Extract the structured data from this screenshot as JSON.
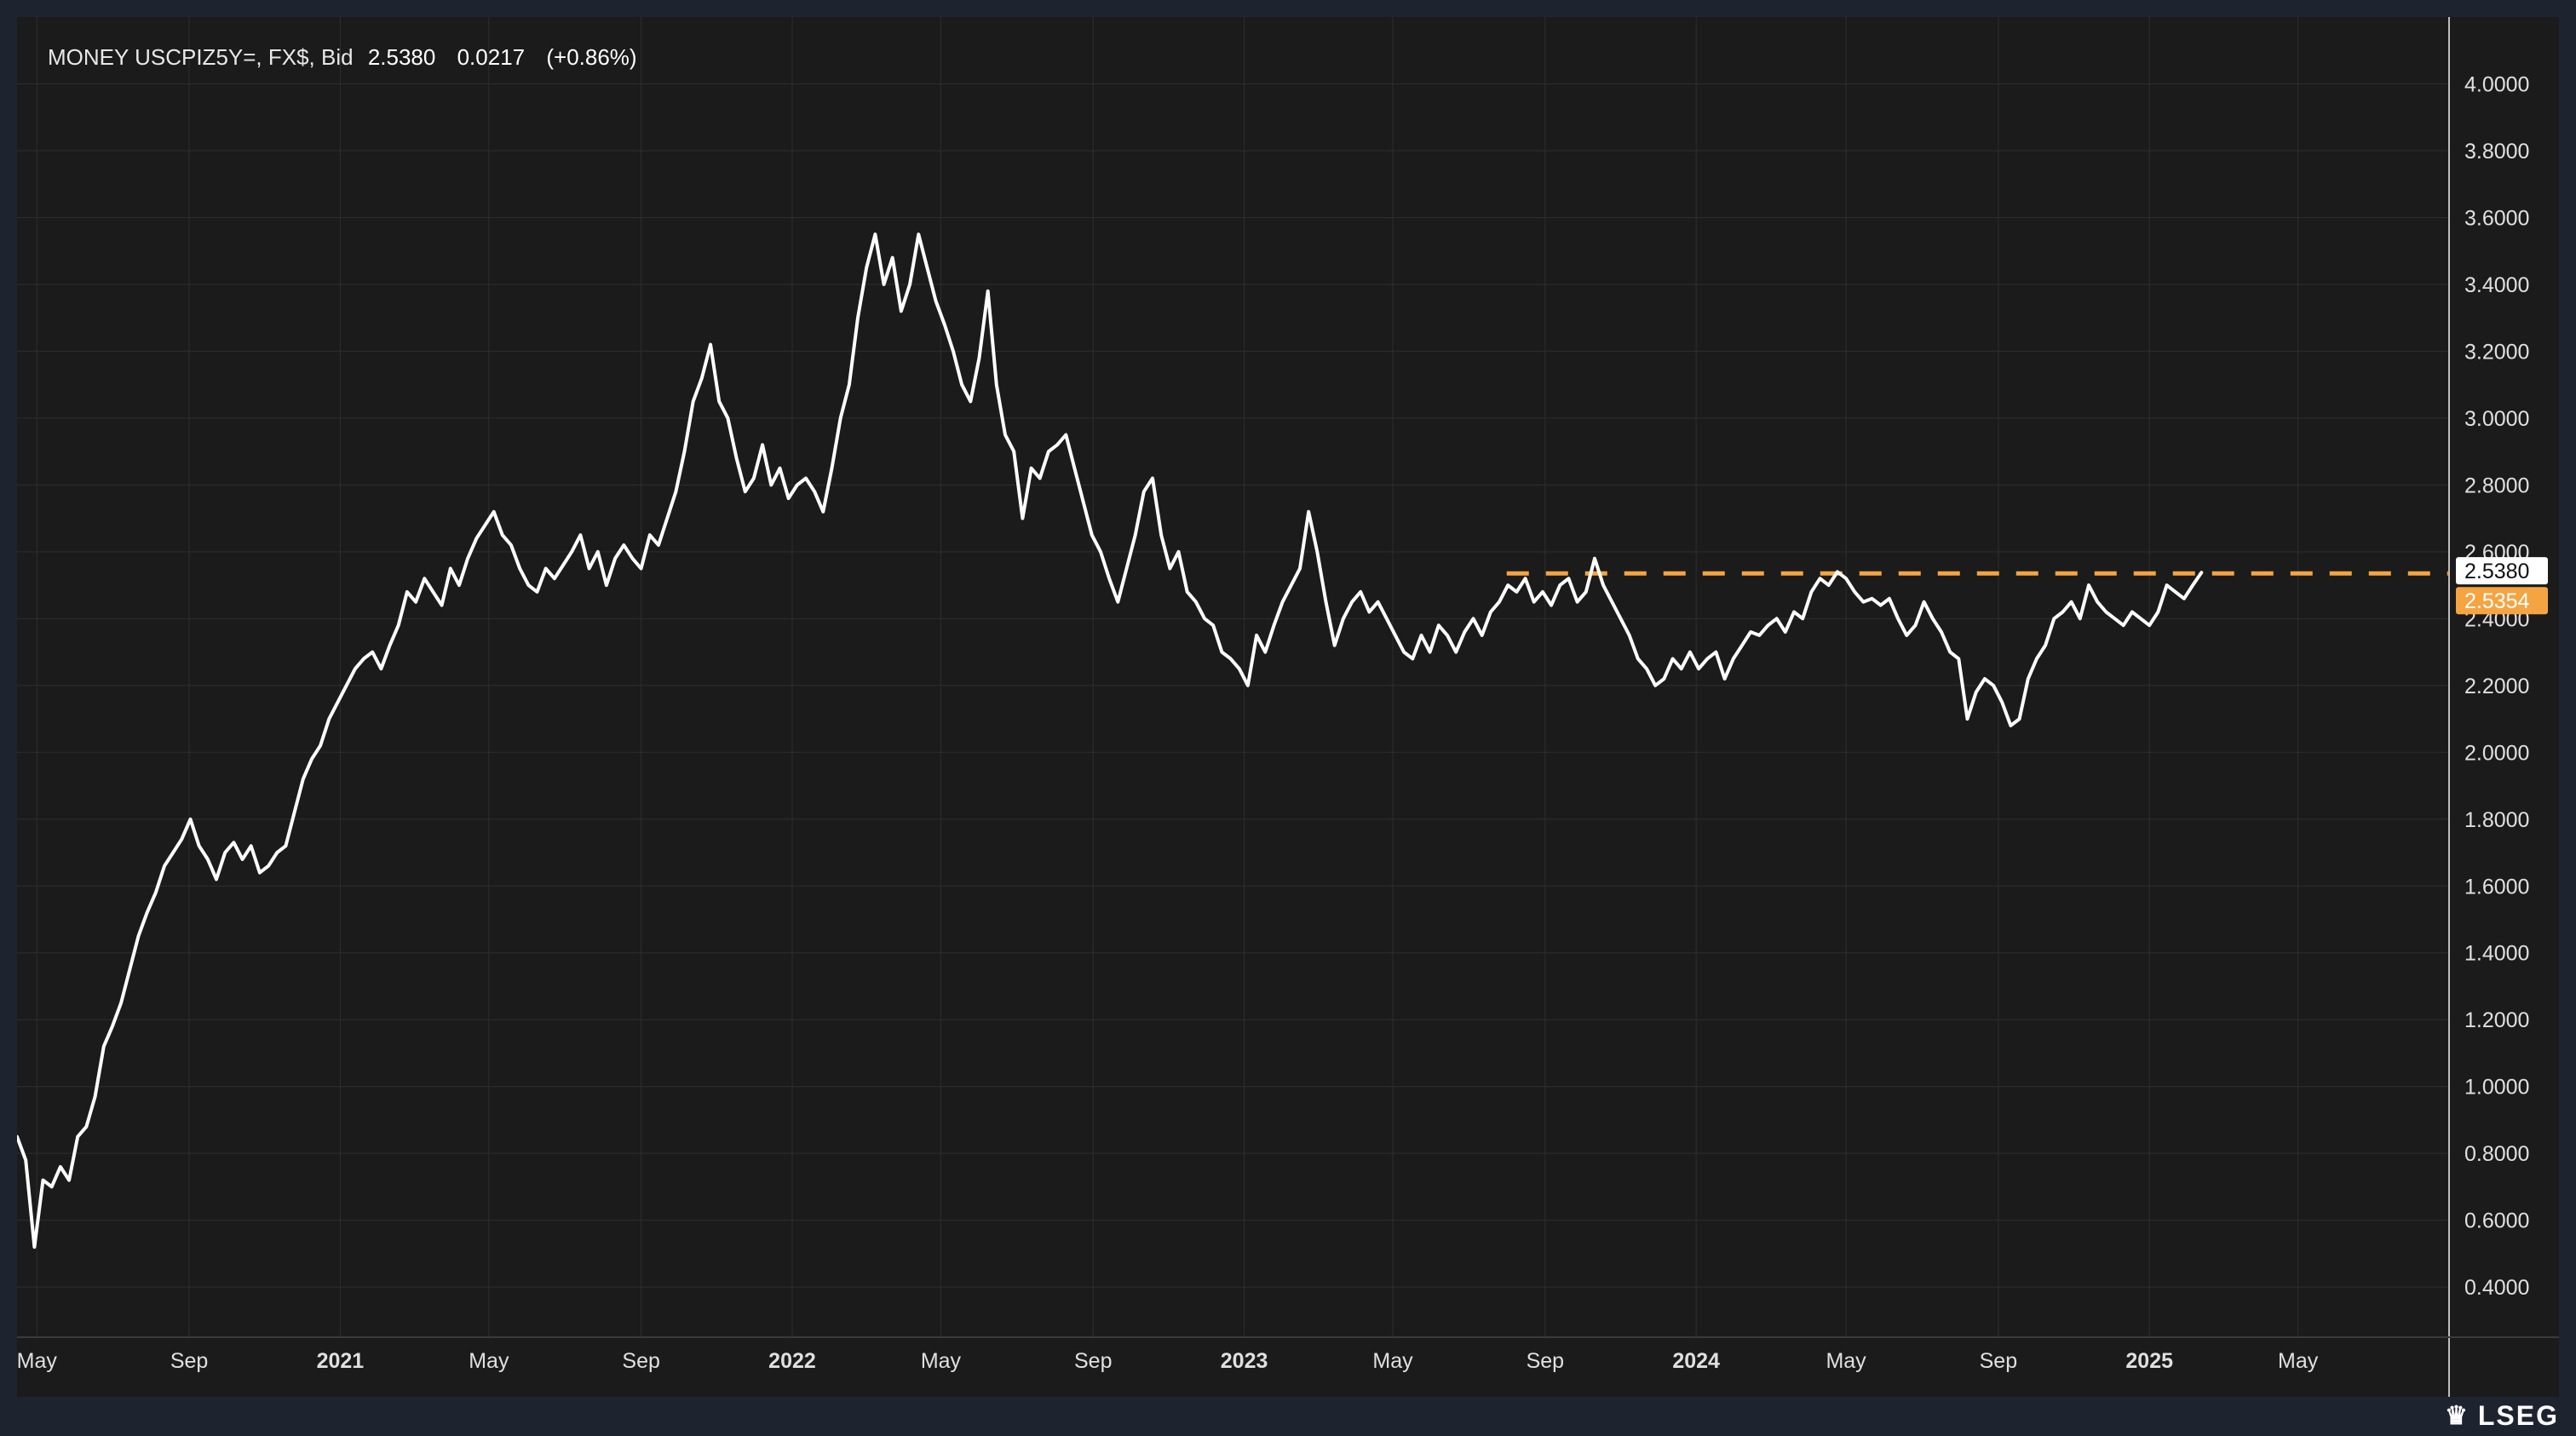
{
  "header": {
    "instrument": "MONEY USCPIZ5Y=, FX$, Bid",
    "last": "2.5380",
    "change": "0.0217",
    "change_pct": "(+0.86%)"
  },
  "logo": {
    "text": "LSEG",
    "icon": "lion-crest-icon"
  },
  "colors": {
    "background": "#1b1b1b",
    "outer": "#1e2330",
    "line": "#ffffff",
    "grid": "#2e2e2e",
    "reference": "#f5a442",
    "last_label_bg": "#ffffff",
    "ref_label_bg": "#f5a442"
  },
  "chart_data": {
    "type": "line",
    "title": "",
    "xlabel": "",
    "ylabel": "",
    "y_ticks": [
      "0.4000",
      "0.6000",
      "0.8000",
      "1.0000",
      "1.2000",
      "1.4000",
      "1.6000",
      "1.8000",
      "2.0000",
      "2.2000",
      "2.4000",
      "2.6000",
      "2.8000",
      "3.0000",
      "3.2000",
      "3.4000",
      "3.6000",
      "3.8000",
      "4.0000"
    ],
    "ylim": [
      0.25,
      4.2
    ],
    "xlim": [
      "2020-04-15",
      "2025-08-31"
    ],
    "grid": true,
    "x_ticks": [
      {
        "date": "2020-05-01",
        "label": "May",
        "bold": false
      },
      {
        "date": "2020-09-01",
        "label": "Sep",
        "bold": false
      },
      {
        "date": "2021-01-01",
        "label": "2021",
        "bold": true
      },
      {
        "date": "2021-05-01",
        "label": "May",
        "bold": false
      },
      {
        "date": "2021-09-01",
        "label": "Sep",
        "bold": false
      },
      {
        "date": "2022-01-01",
        "label": "2022",
        "bold": true
      },
      {
        "date": "2022-05-01",
        "label": "May",
        "bold": false
      },
      {
        "date": "2022-09-01",
        "label": "Sep",
        "bold": false
      },
      {
        "date": "2023-01-01",
        "label": "2023",
        "bold": true
      },
      {
        "date": "2023-05-01",
        "label": "May",
        "bold": false
      },
      {
        "date": "2023-09-01",
        "label": "Sep",
        "bold": false
      },
      {
        "date": "2024-01-01",
        "label": "2024",
        "bold": true
      },
      {
        "date": "2024-05-01",
        "label": "May",
        "bold": false
      },
      {
        "date": "2024-09-01",
        "label": "Sep",
        "bold": false
      },
      {
        "date": "2025-01-01",
        "label": "2025",
        "bold": true
      },
      {
        "date": "2025-05-01",
        "label": "May",
        "bold": false
      }
    ],
    "reference_line": {
      "value": 2.5354,
      "label": "2.5354",
      "x_start": "2023-08-01",
      "style": "dashed"
    },
    "last_value": {
      "value": 2.538,
      "label": "2.5380"
    },
    "series": [
      {
        "values": [
          [
            "2020-04-15",
            0.85
          ],
          [
            "2020-04-22",
            0.78
          ],
          [
            "2020-04-29",
            0.52
          ],
          [
            "2020-05-06",
            0.72
          ],
          [
            "2020-05-13",
            0.7
          ],
          [
            "2020-05-20",
            0.76
          ],
          [
            "2020-05-27",
            0.72
          ],
          [
            "2020-06-03",
            0.85
          ],
          [
            "2020-06-10",
            0.88
          ],
          [
            "2020-06-17",
            0.97
          ],
          [
            "2020-06-24",
            1.12
          ],
          [
            "2020-07-01",
            1.18
          ],
          [
            "2020-07-08",
            1.25
          ],
          [
            "2020-07-15",
            1.35
          ],
          [
            "2020-07-22",
            1.45
          ],
          [
            "2020-07-29",
            1.52
          ],
          [
            "2020-08-05",
            1.58
          ],
          [
            "2020-08-12",
            1.66
          ],
          [
            "2020-08-19",
            1.7
          ],
          [
            "2020-08-26",
            1.74
          ],
          [
            "2020-09-02",
            1.8
          ],
          [
            "2020-09-09",
            1.72
          ],
          [
            "2020-09-16",
            1.68
          ],
          [
            "2020-09-23",
            1.62
          ],
          [
            "2020-09-30",
            1.7
          ],
          [
            "2020-10-07",
            1.73
          ],
          [
            "2020-10-14",
            1.68
          ],
          [
            "2020-10-21",
            1.72
          ],
          [
            "2020-10-28",
            1.64
          ],
          [
            "2020-11-04",
            1.66
          ],
          [
            "2020-11-11",
            1.7
          ],
          [
            "2020-11-18",
            1.72
          ],
          [
            "2020-11-25",
            1.82
          ],
          [
            "2020-12-02",
            1.92
          ],
          [
            "2020-12-09",
            1.98
          ],
          [
            "2020-12-16",
            2.02
          ],
          [
            "2020-12-23",
            2.1
          ],
          [
            "2020-12-30",
            2.15
          ],
          [
            "2021-01-06",
            2.2
          ],
          [
            "2021-01-13",
            2.25
          ],
          [
            "2021-01-20",
            2.28
          ],
          [
            "2021-01-27",
            2.3
          ],
          [
            "2021-02-03",
            2.25
          ],
          [
            "2021-02-10",
            2.32
          ],
          [
            "2021-02-17",
            2.38
          ],
          [
            "2021-02-24",
            2.48
          ],
          [
            "2021-03-03",
            2.45
          ],
          [
            "2021-03-10",
            2.52
          ],
          [
            "2021-03-17",
            2.48
          ],
          [
            "2021-03-24",
            2.44
          ],
          [
            "2021-03-31",
            2.55
          ],
          [
            "2021-04-07",
            2.5
          ],
          [
            "2021-04-14",
            2.58
          ],
          [
            "2021-04-21",
            2.64
          ],
          [
            "2021-04-28",
            2.68
          ],
          [
            "2021-05-05",
            2.72
          ],
          [
            "2021-05-12",
            2.65
          ],
          [
            "2021-05-19",
            2.62
          ],
          [
            "2021-05-26",
            2.55
          ],
          [
            "2021-06-02",
            2.5
          ],
          [
            "2021-06-09",
            2.48
          ],
          [
            "2021-06-16",
            2.55
          ],
          [
            "2021-06-23",
            2.52
          ],
          [
            "2021-06-30",
            2.56
          ],
          [
            "2021-07-07",
            2.6
          ],
          [
            "2021-07-14",
            2.65
          ],
          [
            "2021-07-21",
            2.55
          ],
          [
            "2021-07-28",
            2.6
          ],
          [
            "2021-08-04",
            2.5
          ],
          [
            "2021-08-11",
            2.58
          ],
          [
            "2021-08-18",
            2.62
          ],
          [
            "2021-08-25",
            2.58
          ],
          [
            "2021-09-01",
            2.55
          ],
          [
            "2021-09-08",
            2.65
          ],
          [
            "2021-09-15",
            2.62
          ],
          [
            "2021-09-22",
            2.7
          ],
          [
            "2021-09-29",
            2.78
          ],
          [
            "2021-10-06",
            2.9
          ],
          [
            "2021-10-13",
            3.05
          ],
          [
            "2021-10-20",
            3.12
          ],
          [
            "2021-10-27",
            3.22
          ],
          [
            "2021-11-03",
            3.05
          ],
          [
            "2021-11-10",
            3.0
          ],
          [
            "2021-11-17",
            2.88
          ],
          [
            "2021-11-24",
            2.78
          ],
          [
            "2021-12-01",
            2.82
          ],
          [
            "2021-12-08",
            2.92
          ],
          [
            "2021-12-15",
            2.8
          ],
          [
            "2021-12-22",
            2.85
          ],
          [
            "2021-12-29",
            2.76
          ],
          [
            "2022-01-05",
            2.8
          ],
          [
            "2022-01-12",
            2.82
          ],
          [
            "2022-01-19",
            2.78
          ],
          [
            "2022-01-26",
            2.72
          ],
          [
            "2022-02-02",
            2.85
          ],
          [
            "2022-02-09",
            3.0
          ],
          [
            "2022-02-16",
            3.1
          ],
          [
            "2022-02-23",
            3.3
          ],
          [
            "2022-03-02",
            3.45
          ],
          [
            "2022-03-09",
            3.55
          ],
          [
            "2022-03-16",
            3.4
          ],
          [
            "2022-03-23",
            3.48
          ],
          [
            "2022-03-30",
            3.32
          ],
          [
            "2022-04-06",
            3.4
          ],
          [
            "2022-04-13",
            3.55
          ],
          [
            "2022-04-20",
            3.45
          ],
          [
            "2022-04-27",
            3.35
          ],
          [
            "2022-05-04",
            3.28
          ],
          [
            "2022-05-11",
            3.2
          ],
          [
            "2022-05-18",
            3.1
          ],
          [
            "2022-05-25",
            3.05
          ],
          [
            "2022-06-01",
            3.18
          ],
          [
            "2022-06-08",
            3.38
          ],
          [
            "2022-06-15",
            3.1
          ],
          [
            "2022-06-22",
            2.95
          ],
          [
            "2022-06-29",
            2.9
          ],
          [
            "2022-07-06",
            2.7
          ],
          [
            "2022-07-13",
            2.85
          ],
          [
            "2022-07-20",
            2.82
          ],
          [
            "2022-07-27",
            2.9
          ],
          [
            "2022-08-03",
            2.92
          ],
          [
            "2022-08-10",
            2.95
          ],
          [
            "2022-08-17",
            2.85
          ],
          [
            "2022-08-24",
            2.75
          ],
          [
            "2022-08-31",
            2.65
          ],
          [
            "2022-09-07",
            2.6
          ],
          [
            "2022-09-14",
            2.52
          ],
          [
            "2022-09-21",
            2.45
          ],
          [
            "2022-09-28",
            2.55
          ],
          [
            "2022-10-05",
            2.65
          ],
          [
            "2022-10-12",
            2.78
          ],
          [
            "2022-10-19",
            2.82
          ],
          [
            "2022-10-26",
            2.65
          ],
          [
            "2022-11-02",
            2.55
          ],
          [
            "2022-11-09",
            2.6
          ],
          [
            "2022-11-16",
            2.48
          ],
          [
            "2022-11-23",
            2.45
          ],
          [
            "2022-11-30",
            2.4
          ],
          [
            "2022-12-07",
            2.38
          ],
          [
            "2022-12-14",
            2.3
          ],
          [
            "2022-12-21",
            2.28
          ],
          [
            "2022-12-28",
            2.25
          ],
          [
            "2023-01-04",
            2.2
          ],
          [
            "2023-01-11",
            2.35
          ],
          [
            "2023-01-18",
            2.3
          ],
          [
            "2023-01-25",
            2.38
          ],
          [
            "2023-02-01",
            2.45
          ],
          [
            "2023-02-08",
            2.5
          ],
          [
            "2023-02-15",
            2.55
          ],
          [
            "2023-02-22",
            2.72
          ],
          [
            "2023-03-01",
            2.6
          ],
          [
            "2023-03-08",
            2.45
          ],
          [
            "2023-03-15",
            2.32
          ],
          [
            "2023-03-22",
            2.4
          ],
          [
            "2023-03-29",
            2.45
          ],
          [
            "2023-04-05",
            2.48
          ],
          [
            "2023-04-12",
            2.42
          ],
          [
            "2023-04-19",
            2.45
          ],
          [
            "2023-04-26",
            2.4
          ],
          [
            "2023-05-03",
            2.35
          ],
          [
            "2023-05-10",
            2.3
          ],
          [
            "2023-05-17",
            2.28
          ],
          [
            "2023-05-24",
            2.35
          ],
          [
            "2023-05-31",
            2.3
          ],
          [
            "2023-06-07",
            2.38
          ],
          [
            "2023-06-14",
            2.35
          ],
          [
            "2023-06-21",
            2.3
          ],
          [
            "2023-06-28",
            2.36
          ],
          [
            "2023-07-05",
            2.4
          ],
          [
            "2023-07-12",
            2.35
          ],
          [
            "2023-07-19",
            2.42
          ],
          [
            "2023-07-26",
            2.45
          ],
          [
            "2023-08-02",
            2.5
          ],
          [
            "2023-08-09",
            2.48
          ],
          [
            "2023-08-16",
            2.52
          ],
          [
            "2023-08-23",
            2.45
          ],
          [
            "2023-08-30",
            2.48
          ],
          [
            "2023-09-06",
            2.44
          ],
          [
            "2023-09-13",
            2.5
          ],
          [
            "2023-09-20",
            2.52
          ],
          [
            "2023-09-27",
            2.45
          ],
          [
            "2023-10-04",
            2.48
          ],
          [
            "2023-10-11",
            2.58
          ],
          [
            "2023-10-18",
            2.5
          ],
          [
            "2023-10-25",
            2.45
          ],
          [
            "2023-11-01",
            2.4
          ],
          [
            "2023-11-08",
            2.35
          ],
          [
            "2023-11-15",
            2.28
          ],
          [
            "2023-11-22",
            2.25
          ],
          [
            "2023-11-29",
            2.2
          ],
          [
            "2023-12-06",
            2.22
          ],
          [
            "2023-12-13",
            2.28
          ],
          [
            "2023-12-20",
            2.25
          ],
          [
            "2023-12-27",
            2.3
          ],
          [
            "2024-01-03",
            2.25
          ],
          [
            "2024-01-10",
            2.28
          ],
          [
            "2024-01-17",
            2.3
          ],
          [
            "2024-01-24",
            2.22
          ],
          [
            "2024-01-31",
            2.28
          ],
          [
            "2024-02-07",
            2.32
          ],
          [
            "2024-02-14",
            2.36
          ],
          [
            "2024-02-21",
            2.35
          ],
          [
            "2024-02-28",
            2.38
          ],
          [
            "2024-03-06",
            2.4
          ],
          [
            "2024-03-13",
            2.36
          ],
          [
            "2024-03-20",
            2.42
          ],
          [
            "2024-03-27",
            2.4
          ],
          [
            "2024-04-03",
            2.48
          ],
          [
            "2024-04-10",
            2.52
          ],
          [
            "2024-04-17",
            2.5
          ],
          [
            "2024-04-24",
            2.54
          ],
          [
            "2024-05-01",
            2.52
          ],
          [
            "2024-05-08",
            2.48
          ],
          [
            "2024-05-15",
            2.45
          ],
          [
            "2024-05-22",
            2.46
          ],
          [
            "2024-05-29",
            2.44
          ],
          [
            "2024-06-05",
            2.46
          ],
          [
            "2024-06-12",
            2.4
          ],
          [
            "2024-06-19",
            2.35
          ],
          [
            "2024-06-26",
            2.38
          ],
          [
            "2024-07-03",
            2.45
          ],
          [
            "2024-07-10",
            2.4
          ],
          [
            "2024-07-17",
            2.36
          ],
          [
            "2024-07-24",
            2.3
          ],
          [
            "2024-07-31",
            2.28
          ],
          [
            "2024-08-07",
            2.1
          ],
          [
            "2024-08-14",
            2.18
          ],
          [
            "2024-08-21",
            2.22
          ],
          [
            "2024-08-28",
            2.2
          ],
          [
            "2024-09-04",
            2.15
          ],
          [
            "2024-09-11",
            2.08
          ],
          [
            "2024-09-18",
            2.1
          ],
          [
            "2024-09-25",
            2.22
          ],
          [
            "2024-10-02",
            2.28
          ],
          [
            "2024-10-09",
            2.32
          ],
          [
            "2024-10-16",
            2.4
          ],
          [
            "2024-10-23",
            2.42
          ],
          [
            "2024-10-30",
            2.45
          ],
          [
            "2024-11-06",
            2.4
          ],
          [
            "2024-11-13",
            2.5
          ],
          [
            "2024-11-20",
            2.45
          ],
          [
            "2024-11-27",
            2.42
          ],
          [
            "2024-12-04",
            2.4
          ],
          [
            "2024-12-11",
            2.38
          ],
          [
            "2024-12-18",
            2.42
          ],
          [
            "2024-12-25",
            2.4
          ],
          [
            "2025-01-01",
            2.38
          ],
          [
            "2025-01-08",
            2.42
          ],
          [
            "2025-01-15",
            2.5
          ],
          [
            "2025-01-22",
            2.48
          ],
          [
            "2025-01-29",
            2.46
          ],
          [
            "2025-02-05",
            2.5
          ],
          [
            "2025-02-12",
            2.538
          ]
        ]
      }
    ]
  }
}
